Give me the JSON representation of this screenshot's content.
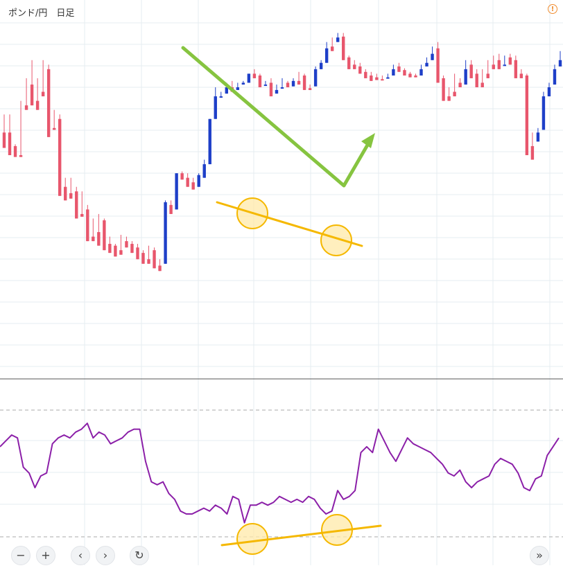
{
  "header": {
    "title": "ポンド/円　日足",
    "warning_symbol": "!"
  },
  "colors": {
    "up": "#1e3fc8",
    "down": "#e8566c",
    "grid": "#e6ecf1",
    "rsi": "#8b1fa8",
    "trend_arrow": "#86c440",
    "support": "#f5b800",
    "highlight_fill": "#ffe9a8"
  },
  "controls": {
    "zoom_out": "−",
    "zoom_in": "+",
    "prev": "‹",
    "next": "›",
    "reset": "↻",
    "fast_forward": "»"
  },
  "chart_data": [
    {
      "type": "candlestick",
      "title": "ポンド/円　日足",
      "y_axis_shown": false,
      "grid": true,
      "ohlc": [
        [
          175,
          158,
          195,
          190
        ],
        [
          175,
          150,
          195,
          162
        ],
        [
          160,
          148,
          162,
          150
        ],
        [
          150,
          148,
          210,
          205
        ],
        [
          205,
          200,
          235,
          228
        ],
        [
          228,
          205,
          255,
          210
        ],
        [
          210,
          200,
          235,
          220
        ],
        [
          220,
          215,
          255,
          245
        ],
        [
          245,
          170,
          250,
          180
        ],
        [
          180,
          178,
          200,
          190
        ],
        [
          190,
          105,
          195,
          115
        ],
        [
          115,
          100,
          125,
          108
        ],
        [
          108,
          102,
          125,
          110
        ],
        [
          110,
          80,
          115,
          85
        ],
        [
          85,
          82,
          110,
          90
        ],
        [
          90,
          55,
          95,
          60
        ],
        [
          60,
          55,
          80,
          65
        ],
        [
          65,
          50,
          85,
          78
        ],
        [
          78,
          45,
          80,
          52
        ],
        [
          52,
          42,
          60,
          50
        ],
        [
          50,
          38,
          52,
          45
        ],
        [
          45,
          40,
          62,
          55
        ],
        [
          55,
          48,
          60,
          52
        ],
        [
          52,
          42,
          55,
          48
        ],
        [
          48,
          35,
          52,
          42
        ],
        [
          42,
          30,
          45,
          35
        ],
        [
          35,
          30,
          50,
          45
        ],
        [
          45,
          25,
          48,
          28
        ],
        [
          28,
          22,
          35,
          30
        ],
        [
          30,
          98,
          100,
          95
        ],
        [
          95,
          85,
          100,
          90
        ],
        [
          90,
          130,
          130,
          130
        ],
        [
          130,
          123,
          132,
          125
        ],
        [
          125,
          115,
          130,
          120
        ],
        [
          120,
          112,
          125,
          115
        ],
        [
          115,
          128,
          130,
          125
        ],
        [
          125,
          140,
          145,
          140
        ],
        [
          140,
          190,
          190,
          190
        ],
        [
          190,
          215,
          225,
          215
        ],
        [
          215,
          215,
          220,
          218
        ],
        [
          218,
          225,
          230,
          225
        ],
        [
          225,
          220,
          232,
          222
        ],
        [
          222,
          225,
          230,
          228
        ],
        [
          228,
          230,
          232,
          230
        ],
        [
          230,
          240,
          240,
          240
        ],
        [
          240,
          235,
          245,
          238
        ],
        [
          238,
          225,
          240,
          228
        ],
        [
          228,
          228,
          232,
          230
        ],
        [
          230,
          215,
          235,
          218
        ],
        [
          218,
          222,
          228,
          225
        ],
        [
          225,
          225,
          235,
          230
        ],
        [
          230,
          225,
          232,
          226
        ],
        [
          226,
          232,
          235,
          232
        ],
        [
          232,
          228,
          242,
          238
        ],
        [
          238,
          222,
          240,
          224
        ],
        [
          224,
          222,
          228,
          226
        ],
        [
          226,
          245,
          248,
          245
        ],
        [
          245,
          252,
          255,
          252
        ],
        [
          252,
          268,
          275,
          270
        ],
        [
          270,
          265,
          280,
          275
        ],
        [
          275,
          280,
          285,
          281
        ],
        [
          281,
          255,
          285,
          258
        ],
        [
          258,
          245,
          260,
          250
        ],
        [
          250,
          245,
          255,
          248
        ],
        [
          248,
          240,
          252,
          242
        ],
        [
          242,
          235,
          245,
          238
        ],
        [
          238,
          232,
          242,
          236
        ],
        [
          236,
          233,
          240,
          234
        ],
        [
          234,
          233,
          238,
          235
        ],
        [
          235,
          236,
          240,
          238
        ],
        [
          238,
          245,
          250,
          248
        ],
        [
          248,
          242,
          252,
          244
        ],
        [
          244,
          238,
          246,
          240
        ],
        [
          240,
          236,
          242,
          238
        ],
        [
          238,
          236,
          240,
          238
        ],
        [
          238,
          245,
          250,
          248
        ],
        [
          248,
          252,
          258,
          255
        ],
        [
          255,
          262,
          270,
          268
        ],
        [
          268,
          230,
          275,
          235
        ],
        [
          235,
          210,
          238,
          215
        ],
        [
          215,
          210,
          225,
          220
        ],
        [
          220,
          215,
          240,
          230
        ],
        [
          230,
          225,
          235,
          228
        ],
        [
          228,
          245,
          255,
          250
        ],
        [
          250,
          235,
          255,
          240
        ],
        [
          240,
          225,
          245,
          230
        ],
        [
          230,
          225,
          245,
          240
        ],
        [
          240,
          235,
          255,
          250
        ],
        [
          250,
          245,
          260,
          255
        ],
        [
          255,
          245,
          262,
          250
        ],
        [
          250,
          250,
          260,
          258
        ],
        [
          258,
          250,
          262,
          255
        ],
        [
          255,
          235,
          260,
          240
        ],
        [
          240,
          235,
          245,
          238
        ],
        [
          238,
          150,
          240,
          160
        ],
        [
          160,
          145,
          175,
          165
        ],
        [
          165,
          175,
          180,
          178
        ],
        [
          178,
          215,
          220,
          215
        ],
        [
          215,
          225,
          230,
          228
        ],
        [
          228,
          245,
          250,
          248
        ],
        [
          248,
          255,
          265,
          262
        ]
      ],
      "annotations": [
        {
          "kind": "arrow",
          "description": "downtrend then reversal",
          "color": "#86c440"
        },
        {
          "kind": "trendline",
          "description": "lower lows on price",
          "color": "#f5b800"
        },
        {
          "kind": "circle",
          "count": 2,
          "color": "#f5b800"
        }
      ]
    },
    {
      "type": "line",
      "title": "",
      "series": [
        {
          "values": [
            52,
            54,
            56,
            55,
            45,
            43,
            38,
            42,
            43,
            53,
            55,
            56,
            55,
            57,
            58,
            60,
            55,
            57,
            56,
            53,
            54,
            55,
            57,
            58,
            58,
            47,
            40,
            39,
            40,
            36,
            34,
            30,
            29,
            29,
            30,
            31,
            30,
            32,
            31,
            29,
            35,
            34,
            26,
            32,
            32,
            33,
            32,
            33,
            35,
            34,
            33,
            34,
            33,
            35,
            34,
            31,
            29,
            30,
            37,
            34,
            35,
            37,
            50,
            52,
            50,
            58,
            54,
            50,
            47,
            51,
            55,
            53,
            52,
            51,
            50,
            48,
            46,
            43,
            42,
            44,
            40,
            38,
            40,
            41,
            42,
            46,
            48,
            47,
            46,
            43,
            38,
            37,
            41,
            42,
            49,
            52,
            55
          ]
        }
      ],
      "grid": true,
      "reference_lines": [
        "upper dashed",
        "lower dashed"
      ],
      "annotations": [
        {
          "kind": "trendline",
          "description": "higher lows on oscillator",
          "color": "#f5b800"
        },
        {
          "kind": "circle",
          "count": 2,
          "color": "#f5b800"
        }
      ]
    }
  ]
}
